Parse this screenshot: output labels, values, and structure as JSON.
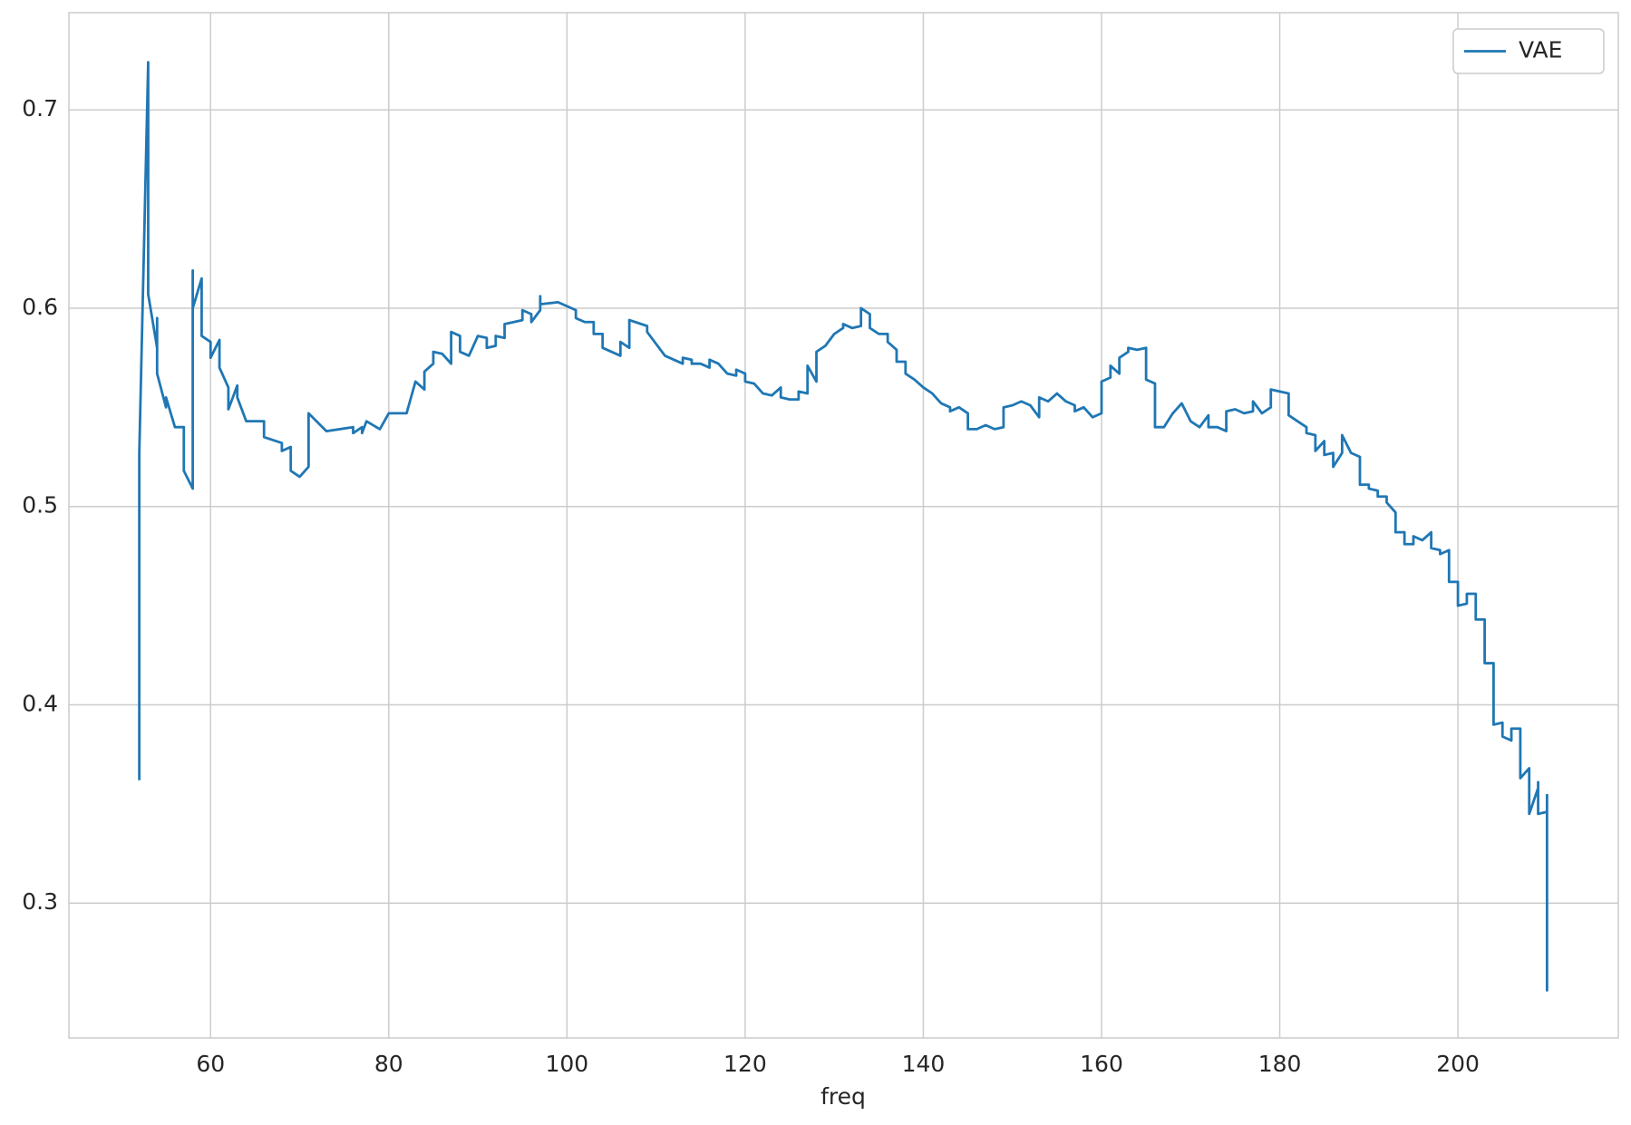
{
  "chart_data": {
    "type": "line",
    "xlabel": "freq",
    "x": [
      52,
      52,
      53,
      53,
      54,
      54,
      54,
      55,
      55,
      56,
      57,
      57,
      58,
      58,
      58,
      59,
      59,
      60,
      60,
      61,
      61,
      62,
      62,
      63,
      63,
      64,
      66,
      66,
      68,
      68,
      69,
      69,
      70,
      71,
      71,
      73,
      76,
      76,
      77,
      77,
      77.5,
      79,
      79.5,
      80,
      82,
      83,
      84,
      84,
      85,
      85,
      86,
      87,
      87,
      88,
      88,
      89,
      90,
      91,
      91,
      92,
      92,
      93,
      93,
      95,
      95,
      96,
      96,
      97,
      97,
      97,
      99,
      100,
      101,
      101,
      102,
      103,
      103,
      104,
      104,
      105,
      106,
      106,
      107,
      107,
      109,
      109,
      110,
      111,
      113,
      113,
      114,
      114,
      115,
      116,
      116,
      117,
      118,
      119,
      119,
      120,
      120,
      121,
      122,
      123,
      124,
      124,
      125,
      126,
      126,
      127,
      127,
      128,
      128,
      129,
      130,
      131,
      131,
      132,
      133,
      133,
      134,
      134,
      135,
      136,
      136,
      137,
      137,
      138,
      138,
      139,
      140,
      141,
      142,
      143,
      143,
      144,
      145,
      145,
      146,
      147,
      148,
      149,
      149,
      150,
      151,
      152,
      153,
      153,
      154,
      155,
      156,
      157,
      157,
      158,
      159,
      160,
      160,
      161,
      161,
      162,
      162,
      163,
      163,
      164,
      165,
      165,
      166,
      166,
      167,
      168,
      169,
      170,
      171,
      172,
      172,
      173,
      174,
      174,
      175,
      176,
      177,
      177,
      178,
      179,
      179,
      180,
      181,
      181,
      182,
      183,
      183,
      184,
      184,
      185,
      185,
      186,
      186,
      187,
      187,
      188,
      189,
      189,
      190,
      190,
      191,
      191,
      192,
      192,
      193,
      193,
      194,
      194,
      195,
      195,
      196,
      197,
      197,
      198,
      198,
      199,
      199,
      200,
      200,
      201,
      201,
      202,
      202,
      203,
      203,
      204,
      204,
      205,
      205,
      206,
      206,
      207,
      207,
      208,
      208,
      209,
      209,
      209,
      210,
      210,
      210,
      210,
      210,
      210
    ],
    "series": [
      {
        "name": "VAE",
        "color": "#1f77b4",
        "values": [
          0.362,
          0.527,
          0.724,
          0.607,
          0.58,
          0.595,
          0.567,
          0.55,
          0.555,
          0.54,
          0.54,
          0.518,
          0.509,
          0.619,
          0.6,
          0.615,
          0.586,
          0.583,
          0.575,
          0.584,
          0.57,
          0.56,
          0.549,
          0.561,
          0.555,
          0.543,
          0.543,
          0.535,
          0.532,
          0.528,
          0.53,
          0.518,
          0.515,
          0.52,
          0.547,
          0.538,
          0.54,
          0.537,
          0.54,
          0.537,
          0.543,
          0.539,
          0.543,
          0.547,
          0.547,
          0.563,
          0.559,
          0.568,
          0.572,
          0.578,
          0.577,
          0.572,
          0.588,
          0.586,
          0.578,
          0.576,
          0.586,
          0.585,
          0.58,
          0.581,
          0.586,
          0.585,
          0.592,
          0.594,
          0.599,
          0.597,
          0.593,
          0.599,
          0.606,
          0.602,
          0.603,
          0.601,
          0.599,
          0.595,
          0.593,
          0.593,
          0.587,
          0.587,
          0.58,
          0.578,
          0.576,
          0.583,
          0.58,
          0.594,
          0.591,
          0.588,
          0.582,
          0.576,
          0.572,
          0.575,
          0.574,
          0.572,
          0.572,
          0.57,
          0.574,
          0.572,
          0.567,
          0.566,
          0.569,
          0.567,
          0.563,
          0.562,
          0.557,
          0.556,
          0.56,
          0.555,
          0.554,
          0.554,
          0.558,
          0.557,
          0.571,
          0.563,
          0.578,
          0.581,
          0.587,
          0.59,
          0.592,
          0.59,
          0.591,
          0.6,
          0.597,
          0.59,
          0.587,
          0.587,
          0.583,
          0.579,
          0.573,
          0.573,
          0.567,
          0.564,
          0.56,
          0.557,
          0.552,
          0.55,
          0.548,
          0.55,
          0.547,
          0.539,
          0.539,
          0.541,
          0.539,
          0.54,
          0.55,
          0.551,
          0.553,
          0.551,
          0.545,
          0.555,
          0.553,
          0.557,
          0.553,
          0.551,
          0.548,
          0.55,
          0.545,
          0.547,
          0.563,
          0.565,
          0.571,
          0.567,
          0.575,
          0.578,
          0.58,
          0.579,
          0.58,
          0.564,
          0.562,
          0.54,
          0.54,
          0.547,
          0.552,
          0.543,
          0.54,
          0.546,
          0.54,
          0.54,
          0.538,
          0.548,
          0.549,
          0.547,
          0.548,
          0.553,
          0.547,
          0.55,
          0.559,
          0.558,
          0.557,
          0.546,
          0.543,
          0.54,
          0.537,
          0.536,
          0.528,
          0.533,
          0.526,
          0.527,
          0.52,
          0.527,
          0.536,
          0.527,
          0.525,
          0.511,
          0.511,
          0.509,
          0.508,
          0.505,
          0.505,
          0.502,
          0.497,
          0.487,
          0.487,
          0.481,
          0.481,
          0.485,
          0.483,
          0.487,
          0.479,
          0.478,
          0.476,
          0.478,
          0.462,
          0.462,
          0.45,
          0.451,
          0.456,
          0.456,
          0.443,
          0.443,
          0.421,
          0.421,
          0.39,
          0.391,
          0.384,
          0.382,
          0.388,
          0.388,
          0.363,
          0.368,
          0.345,
          0.358,
          0.361,
          0.345,
          0.346,
          0.345,
          0.27,
          0.256,
          0.27,
          0.355
        ]
      }
    ],
    "xlim": [
      44.1,
      218.0
    ],
    "ylim": [
      0.232,
      0.749
    ],
    "xticks": [
      60,
      80,
      100,
      120,
      140,
      160,
      180,
      200
    ],
    "yticks": [
      0.3,
      0.4,
      0.5,
      0.6,
      0.7
    ],
    "grid": true,
    "legend": "upper right"
  }
}
